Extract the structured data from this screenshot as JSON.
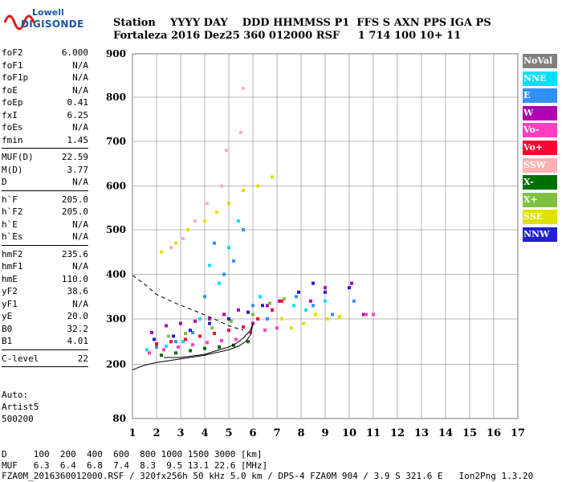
{
  "logo": {
    "line1": "Lowell",
    "line2": "DIGISONDE"
  },
  "header": {
    "line1": "Station    YYYY DAY    DDD HHMMSS P1  FFS S AXN PPS IGA PS",
    "line2": "Fortaleza 2016 Dez25 360 012000 RSF     1 714 100 10+ 11"
  },
  "params": {
    "group1": [
      {
        "name": "foF2",
        "value": "6.000"
      },
      {
        "name": "foF1",
        "value": "N/A"
      },
      {
        "name": "foF1p",
        "value": "N/A"
      },
      {
        "name": "foE",
        "value": "N/A"
      },
      {
        "name": "foEp",
        "value": "0.41"
      },
      {
        "name": "fxI",
        "value": "6.25"
      },
      {
        "name": "foEs",
        "value": "N/A"
      },
      {
        "name": "fmin",
        "value": "1.45"
      }
    ],
    "group2": [
      {
        "name": "MUF(D)",
        "value": "22.59"
      },
      {
        "name": "M(D)",
        "value": "3.77"
      },
      {
        "name": "D",
        "value": "N/A"
      }
    ],
    "group3": [
      {
        "name": "h`F",
        "value": "205.0"
      },
      {
        "name": "h`F2",
        "value": "205.0"
      },
      {
        "name": "h`E",
        "value": "N/A"
      },
      {
        "name": "h`Es",
        "value": "N/A"
      }
    ],
    "group4": [
      {
        "name": "hmF2",
        "value": "235.6"
      },
      {
        "name": "hmF1",
        "value": "N/A"
      },
      {
        "name": "hmE",
        "value": "110.0"
      },
      {
        "name": "yF2",
        "value": "38.6"
      },
      {
        "name": "yF1",
        "value": "N/A"
      },
      {
        "name": "yE",
        "value": "20.0"
      },
      {
        "name": "B0",
        "value": "32.2"
      },
      {
        "name": "B1",
        "value": "4.01"
      }
    ],
    "group5": [
      {
        "name": "C-level",
        "value": "22"
      }
    ]
  },
  "auto": {
    "line1": "Auto:",
    "line2": "Artist5",
    "line3": "500200"
  },
  "legend": [
    {
      "label": "NoVal",
      "bg": "#808080",
      "fg": "#ffffff"
    },
    {
      "label": "NNE",
      "bg": "#00e0ff",
      "fg": "#ffffff"
    },
    {
      "label": "E",
      "bg": "#3090ff",
      "fg": "#ffffff"
    },
    {
      "label": "W",
      "bg": "#b000b0",
      "fg": "#ffffff"
    },
    {
      "label": "Vo-",
      "bg": "#ff40c0",
      "fg": "#ffffff"
    },
    {
      "label": "Vo+",
      "bg": "#ff0030",
      "fg": "#ffffff"
    },
    {
      "label": "SSW",
      "bg": "#ffb0b0",
      "fg": "#ffffff"
    },
    {
      "label": "X-",
      "bg": "#007000",
      "fg": "#ffffff"
    },
    {
      "label": "X+",
      "bg": "#80c040",
      "fg": "#ffffff"
    },
    {
      "label": "SSE",
      "bg": "#e0e000",
      "fg": "#ffffff"
    },
    {
      "label": "NNW",
      "bg": "#2020d0",
      "fg": "#ffffff"
    }
  ],
  "footer": {
    "line1": "D     100  200  400  600  800 1000 1500 3000 [km]",
    "line2": "MUF   6.3  6.4  6.8  7.4  8.3  9.5 13.1 22.6 [MHz]",
    "line3": "FZA0M_2016360012000.RSF / 320fx256h 50 kHz 5.0 km / DPS-4 FZA0M 904 / 3.9 S 321.6 E   Ion2Png 1.3.20"
  },
  "chart_data": {
    "type": "scatter",
    "xlim": [
      1,
      17
    ],
    "ylim": [
      80,
      900
    ],
    "x_ticks": [
      1,
      2,
      3,
      4,
      5,
      6,
      7,
      8,
      9,
      10,
      11,
      12,
      13,
      14,
      15,
      16,
      17
    ],
    "y_ticks": [
      80,
      200,
      300,
      400,
      500,
      600,
      700,
      800,
      900
    ],
    "grid": true,
    "legend_position": "right",
    "series": [
      {
        "name": "NNE",
        "color": "#00e0ff",
        "points": [
          [
            1.6,
            232
          ],
          [
            2.4,
            240
          ],
          [
            3.1,
            250
          ],
          [
            3.8,
            300
          ],
          [
            4.2,
            420
          ],
          [
            4.6,
            380
          ],
          [
            5.0,
            460
          ],
          [
            5.4,
            520
          ],
          [
            6.3,
            350
          ],
          [
            7.7,
            330
          ],
          [
            8.2,
            320
          ],
          [
            9.0,
            340
          ]
        ]
      },
      {
        "name": "E",
        "color": "#3090ff",
        "points": [
          [
            2.0,
            238
          ],
          [
            2.8,
            250
          ],
          [
            3.5,
            270
          ],
          [
            4.0,
            350
          ],
          [
            4.4,
            470
          ],
          [
            4.8,
            400
          ],
          [
            5.2,
            430
          ],
          [
            5.6,
            500
          ],
          [
            6.0,
            330
          ],
          [
            6.6,
            300
          ],
          [
            7.8,
            350
          ],
          [
            8.5,
            330
          ],
          [
            9.3,
            310
          ],
          [
            10.2,
            340
          ]
        ]
      },
      {
        "name": "W",
        "color": "#b000b0",
        "points": [
          [
            1.8,
            270
          ],
          [
            2.4,
            285
          ],
          [
            3.0,
            290
          ],
          [
            3.6,
            295
          ],
          [
            4.2,
            300
          ],
          [
            4.8,
            310
          ],
          [
            5.4,
            320
          ],
          [
            6.0,
            290
          ],
          [
            6.6,
            330
          ],
          [
            7.1,
            340
          ],
          [
            8.4,
            340
          ],
          [
            9.0,
            370
          ],
          [
            10.1,
            380
          ],
          [
            10.6,
            310
          ]
        ]
      },
      {
        "name": "Vo-",
        "color": "#ff40c0",
        "points": [
          [
            1.7,
            225
          ],
          [
            2.3,
            232
          ],
          [
            2.9,
            238
          ],
          [
            3.5,
            243
          ],
          [
            4.1,
            248
          ],
          [
            4.7,
            252
          ],
          [
            5.3,
            255
          ],
          [
            5.9,
            270
          ],
          [
            6.5,
            275
          ],
          [
            7.0,
            280
          ],
          [
            10.7,
            310
          ],
          [
            11.0,
            310
          ]
        ]
      },
      {
        "name": "Vo+",
        "color": "#ff0030",
        "points": [
          [
            2.0,
            245
          ],
          [
            2.6,
            250
          ],
          [
            3.2,
            255
          ],
          [
            3.8,
            262
          ],
          [
            4.4,
            268
          ],
          [
            5.0,
            275
          ],
          [
            5.6,
            282
          ],
          [
            6.2,
            300
          ],
          [
            6.8,
            320
          ],
          [
            7.2,
            340
          ]
        ]
      },
      {
        "name": "SSW",
        "color": "#ffb0b0",
        "points": [
          [
            2.6,
            460
          ],
          [
            3.1,
            480
          ],
          [
            3.6,
            520
          ],
          [
            4.1,
            560
          ],
          [
            4.7,
            600
          ],
          [
            4.9,
            680
          ],
          [
            5.5,
            720
          ],
          [
            5.6,
            820
          ]
        ]
      },
      {
        "name": "X-",
        "color": "#007000",
        "points": [
          [
            2.2,
            220
          ],
          [
            2.8,
            225
          ],
          [
            3.4,
            230
          ],
          [
            4.0,
            235
          ],
          [
            4.6,
            238
          ],
          [
            5.2,
            242
          ],
          [
            5.8,
            250
          ]
        ]
      },
      {
        "name": "X+",
        "color": "#80c040",
        "points": [
          [
            2.5,
            262
          ],
          [
            3.2,
            268
          ],
          [
            4.3,
            280
          ],
          [
            5.1,
            295
          ],
          [
            6.0,
            310
          ],
          [
            6.7,
            335
          ],
          [
            7.3,
            345
          ]
        ]
      },
      {
        "name": "SSE",
        "color": "#e0e000",
        "points": [
          [
            2.2,
            450
          ],
          [
            2.8,
            470
          ],
          [
            3.3,
            500
          ],
          [
            4.0,
            520
          ],
          [
            4.5,
            540
          ],
          [
            5.0,
            560
          ],
          [
            5.6,
            590
          ],
          [
            6.2,
            600
          ],
          [
            6.8,
            620
          ],
          [
            7.2,
            300
          ],
          [
            7.6,
            280
          ],
          [
            8.1,
            290
          ],
          [
            8.6,
            310
          ],
          [
            9.1,
            300
          ],
          [
            9.6,
            305
          ]
        ]
      },
      {
        "name": "NNW",
        "color": "#2020d0",
        "points": [
          [
            1.9,
            255
          ],
          [
            2.7,
            262
          ],
          [
            3.4,
            275
          ],
          [
            4.2,
            290
          ],
          [
            5.0,
            300
          ],
          [
            5.8,
            315
          ],
          [
            6.4,
            330
          ],
          [
            7.9,
            360
          ],
          [
            8.5,
            380
          ],
          [
            9.0,
            360
          ],
          [
            10.0,
            370
          ]
        ]
      }
    ],
    "lines": [
      {
        "name": "trace",
        "style": "solid",
        "points": [
          [
            1.0,
            188
          ],
          [
            1.5,
            198
          ],
          [
            2.0,
            204
          ],
          [
            3.0,
            212
          ],
          [
            4.0,
            220
          ],
          [
            4.5,
            226
          ],
          [
            5.0,
            232
          ],
          [
            5.4,
            240
          ],
          [
            5.7,
            250
          ],
          [
            5.9,
            265
          ],
          [
            6.0,
            290
          ]
        ]
      },
      {
        "name": "profile",
        "style": "solid",
        "points": [
          [
            2.3,
            215
          ],
          [
            3.0,
            215
          ],
          [
            4.0,
            222
          ],
          [
            4.6,
            232
          ],
          [
            5.0,
            238
          ],
          [
            5.3,
            246
          ],
          [
            5.6,
            258
          ],
          [
            5.9,
            275
          ],
          [
            6.0,
            290
          ]
        ]
      },
      {
        "name": "profile-ext",
        "style": "dashed",
        "points": [
          [
            1.0,
            398
          ],
          [
            1.5,
            378
          ],
          [
            2.0,
            355
          ],
          [
            2.8,
            335
          ],
          [
            3.6,
            318
          ],
          [
            4.4,
            300
          ],
          [
            5.0,
            285
          ],
          [
            5.6,
            275
          ]
        ]
      }
    ]
  }
}
